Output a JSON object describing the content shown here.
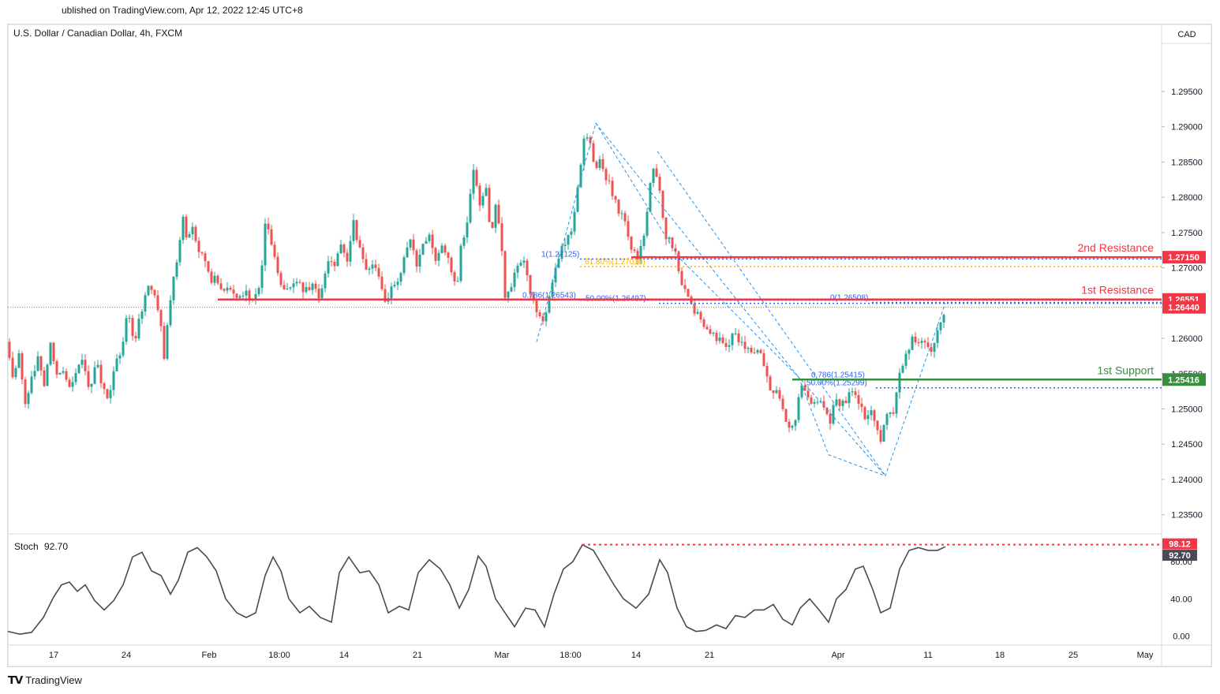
{
  "header": {
    "published": "ublished on TradingView.com, Apr 12, 2022 12:45 UTC+8"
  },
  "footer": {
    "brand": "TradingView"
  },
  "chart_data": {
    "type": "candlestick",
    "title": "U.S. Dollar / Canadian Dollar, 4h, FXCM",
    "currency_label": "CAD",
    "y_ticks": [
      "1.29500",
      "1.29000",
      "1.28500",
      "1.28000",
      "1.27500",
      "1.27000",
      "1.26500",
      "1.26000",
      "1.25500",
      "1.25000",
      "1.24500",
      "1.24000",
      "1.23500"
    ],
    "ylim": [
      1.2325,
      1.3045
    ],
    "x_ticks": [
      "17",
      "24",
      "Feb",
      "18:00",
      "14",
      "21",
      "Mar",
      "18:00",
      "14",
      "21",
      "Apr",
      "11",
      "18",
      "25",
      "May"
    ],
    "series_path": [
      [
        0,
        1.2595
      ],
      [
        7,
        1.2535
      ],
      [
        14,
        1.2575
      ],
      [
        22,
        1.2505
      ],
      [
        30,
        1.254
      ],
      [
        38,
        1.2575
      ],
      [
        46,
        1.2535
      ],
      [
        54,
        1.2595
      ],
      [
        62,
        1.2545
      ],
      [
        70,
        1.2555
      ],
      [
        78,
        1.2535
      ],
      [
        88,
        1.2555
      ],
      [
        96,
        1.257
      ],
      [
        104,
        1.2525
      ],
      [
        112,
        1.2575
      ],
      [
        120,
        1.2525
      ],
      [
        128,
        1.2515
      ],
      [
        136,
        1.2565
      ],
      [
        144,
        1.2575
      ],
      [
        152,
        1.264
      ],
      [
        160,
        1.2595
      ],
      [
        168,
        1.2635
      ],
      [
        176,
        1.267
      ],
      [
        184,
        1.2665
      ],
      [
        192,
        1.263
      ],
      [
        198,
        1.2575
      ],
      [
        204,
        1.264
      ],
      [
        210,
        1.269
      ],
      [
        216,
        1.2715
      ],
      [
        222,
        1.2775
      ],
      [
        228,
        1.2735
      ],
      [
        234,
        1.276
      ],
      [
        240,
        1.2725
      ],
      [
        248,
        1.2715
      ],
      [
        256,
        1.268
      ],
      [
        264,
        1.269
      ],
      [
        272,
        1.2665
      ],
      [
        280,
        1.2675
      ],
      [
        290,
        1.2655
      ],
      [
        300,
        1.2665
      ],
      [
        310,
        1.2655
      ],
      [
        320,
        1.267
      ],
      [
        326,
        1.276
      ],
      [
        332,
        1.2745
      ],
      [
        340,
        1.2705
      ],
      [
        348,
        1.2665
      ],
      [
        356,
        1.2675
      ],
      [
        366,
        1.268
      ],
      [
        376,
        1.2665
      ],
      [
        386,
        1.268
      ],
      [
        396,
        1.2655
      ],
      [
        406,
        1.2715
      ],
      [
        414,
        1.2705
      ],
      [
        422,
        1.2735
      ],
      [
        430,
        1.2705
      ],
      [
        438,
        1.2765
      ],
      [
        446,
        1.2725
      ],
      [
        454,
        1.2695
      ],
      [
        462,
        1.2705
      ],
      [
        470,
        1.2685
      ],
      [
        478,
        1.2655
      ],
      [
        486,
        1.267
      ],
      [
        494,
        1.2675
      ],
      [
        502,
        1.2715
      ],
      [
        510,
        1.2735
      ],
      [
        518,
        1.2705
      ],
      [
        526,
        1.2735
      ],
      [
        534,
        1.2745
      ],
      [
        542,
        1.2715
      ],
      [
        552,
        1.2735
      ],
      [
        560,
        1.2705
      ],
      [
        568,
        1.2665
      ],
      [
        574,
        1.273
      ],
      [
        582,
        1.2765
      ],
      [
        590,
        1.2835
      ],
      [
        598,
        1.279
      ],
      [
        606,
        1.2815
      ],
      [
        612,
        1.2745
      ],
      [
        618,
        1.279
      ],
      [
        624,
        1.275
      ],
      [
        630,
        1.2655
      ],
      [
        638,
        1.2675
      ],
      [
        646,
        1.2705
      ],
      [
        654,
        1.2705
      ],
      [
        662,
        1.2665
      ],
      [
        670,
        1.264
      ],
      [
        676,
        1.262
      ],
      [
        682,
        1.264
      ],
      [
        688,
        1.267
      ],
      [
        696,
        1.2705
      ],
      [
        704,
        1.2735
      ],
      [
        712,
        1.2745
      ],
      [
        718,
        1.2775
      ],
      [
        724,
        1.2835
      ],
      [
        730,
        1.2885
      ],
      [
        738,
        1.2875
      ],
      [
        744,
        1.2835
      ],
      [
        750,
        1.2855
      ],
      [
        756,
        1.2825
      ],
      [
        764,
        1.2815
      ],
      [
        772,
        1.2785
      ],
      [
        780,
        1.2775
      ],
      [
        786,
        1.275
      ],
      [
        792,
        1.272
      ],
      [
        800,
        1.2715
      ],
      [
        808,
        1.2755
      ],
      [
        814,
        1.2825
      ],
      [
        820,
        1.285
      ],
      [
        826,
        1.2805
      ],
      [
        832,
        1.275
      ],
      [
        840,
        1.2735
      ],
      [
        846,
        1.272
      ],
      [
        852,
        1.2685
      ],
      [
        860,
        1.2665
      ],
      [
        866,
        1.265
      ],
      [
        872,
        1.2635
      ],
      [
        880,
        1.2625
      ],
      [
        890,
        1.2605
      ],
      [
        900,
        1.26
      ],
      [
        910,
        1.259
      ],
      [
        920,
        1.2605
      ],
      [
        930,
        1.2595
      ],
      [
        940,
        1.258
      ],
      [
        948,
        1.2585
      ],
      [
        956,
        1.2575
      ],
      [
        962,
        1.2545
      ],
      [
        968,
        1.252
      ],
      [
        976,
        1.253
      ],
      [
        982,
        1.2495
      ],
      [
        990,
        1.2475
      ],
      [
        998,
        1.2485
      ],
      [
        1004,
        1.254
      ],
      [
        1012,
        1.2525
      ],
      [
        1020,
        1.2505
      ],
      [
        1028,
        1.251
      ],
      [
        1036,
        1.2495
      ],
      [
        1042,
        1.2475
      ],
      [
        1048,
        1.252
      ],
      [
        1056,
        1.2505
      ],
      [
        1064,
        1.2515
      ],
      [
        1070,
        1.2525
      ],
      [
        1078,
        1.2505
      ],
      [
        1086,
        1.249
      ],
      [
        1094,
        1.2495
      ],
      [
        1100,
        1.2475
      ],
      [
        1106,
        1.245
      ],
      [
        1112,
        1.2485
      ],
      [
        1118,
        1.2495
      ],
      [
        1124,
        1.25
      ],
      [
        1130,
        1.2555
      ],
      [
        1138,
        1.2575
      ],
      [
        1146,
        1.26
      ],
      [
        1154,
        1.2595
      ],
      [
        1162,
        1.26
      ],
      [
        1170,
        1.2575
      ],
      [
        1176,
        1.2605
      ],
      [
        1182,
        1.2625
      ],
      [
        1188,
        1.2645
      ]
    ],
    "levels": [
      {
        "name": "2nd Resistance",
        "value": 1.2715,
        "price_label": "1.27150",
        "color": "#f23645"
      },
      {
        "name": "1st Resistance",
        "value": 1.26551,
        "price_label": "1.26551",
        "color": "#f23645"
      },
      {
        "name": "1st Support",
        "value": 1.25416,
        "price_label": "1.25416",
        "color": "#388e3c"
      }
    ],
    "current_price": {
      "value": 1.2644,
      "label": "1.26440",
      "color": "#f23645"
    },
    "fib_annotations": [
      {
        "text": "1(1.27125)",
        "value": 1.27125,
        "color": "#2962ff"
      },
      {
        "text": "61.80%(1.27018)",
        "value": 1.27018,
        "color": "#f5b400"
      },
      {
        "text": "0.786(1.26543)",
        "value": 1.26543,
        "color": "#2962ff"
      },
      {
        "text": "50.00%(1.26497)",
        "value": 1.26497,
        "color": "#2962ff"
      },
      {
        "text": "0(1.26508)",
        "value": 1.26508,
        "color": "#2962ff"
      },
      {
        "text": "0.786(1.25415)",
        "value": 1.25415,
        "color": "#2962ff"
      },
      {
        "text": "50.00%(1.25299)",
        "value": 1.25299,
        "color": "#2962ff"
      }
    ],
    "stoch": {
      "label": "Stoch",
      "value_label": "92.70",
      "level_label": "98.12",
      "y_ticks": [
        "80.00",
        "40.00",
        "0.00"
      ],
      "ylim": [
        -8,
        108
      ],
      "values": [
        [
          0,
          5
        ],
        [
          15,
          2
        ],
        [
          30,
          4
        ],
        [
          45,
          20
        ],
        [
          58,
          42
        ],
        [
          68,
          55
        ],
        [
          78,
          58
        ],
        [
          88,
          48
        ],
        [
          98,
          55
        ],
        [
          110,
          38
        ],
        [
          122,
          28
        ],
        [
          134,
          38
        ],
        [
          146,
          55
        ],
        [
          158,
          85
        ],
        [
          170,
          90
        ],
        [
          182,
          70
        ],
        [
          194,
          65
        ],
        [
          206,
          45
        ],
        [
          216,
          60
        ],
        [
          228,
          90
        ],
        [
          240,
          95
        ],
        [
          252,
          85
        ],
        [
          264,
          70
        ],
        [
          276,
          40
        ],
        [
          290,
          25
        ],
        [
          302,
          20
        ],
        [
          314,
          25
        ],
        [
          326,
          65
        ],
        [
          336,
          85
        ],
        [
          346,
          70
        ],
        [
          356,
          40
        ],
        [
          370,
          25
        ],
        [
          382,
          32
        ],
        [
          396,
          20
        ],
        [
          410,
          15
        ],
        [
          420,
          68
        ],
        [
          432,
          85
        ],
        [
          446,
          68
        ],
        [
          458,
          70
        ],
        [
          470,
          55
        ],
        [
          482,
          25
        ],
        [
          496,
          32
        ],
        [
          508,
          28
        ],
        [
          520,
          68
        ],
        [
          534,
          82
        ],
        [
          548,
          72
        ],
        [
          560,
          55
        ],
        [
          572,
          30
        ],
        [
          584,
          50
        ],
        [
          596,
          86
        ],
        [
          606,
          75
        ],
        [
          618,
          40
        ],
        [
          630,
          25
        ],
        [
          642,
          10
        ],
        [
          656,
          30
        ],
        [
          668,
          28
        ],
        [
          680,
          10
        ],
        [
          692,
          45
        ],
        [
          704,
          72
        ],
        [
          716,
          80
        ],
        [
          728,
          98
        ],
        [
          742,
          92
        ],
        [
          756,
          72
        ],
        [
          768,
          55
        ],
        [
          780,
          40
        ],
        [
          796,
          30
        ],
        [
          812,
          45
        ],
        [
          826,
          82
        ],
        [
          836,
          68
        ],
        [
          848,
          30
        ],
        [
          860,
          10
        ],
        [
          872,
          5
        ],
        [
          884,
          6
        ],
        [
          898,
          12
        ],
        [
          910,
          8
        ],
        [
          922,
          22
        ],
        [
          934,
          20
        ],
        [
          946,
          28
        ],
        [
          958,
          28
        ],
        [
          970,
          34
        ],
        [
          982,
          18
        ],
        [
          994,
          12
        ],
        [
          1004,
          30
        ],
        [
          1016,
          40
        ],
        [
          1028,
          28
        ],
        [
          1040,
          15
        ],
        [
          1050,
          40
        ],
        [
          1062,
          50
        ],
        [
          1074,
          72
        ],
        [
          1084,
          75
        ],
        [
          1096,
          50
        ],
        [
          1106,
          25
        ],
        [
          1118,
          30
        ],
        [
          1130,
          72
        ],
        [
          1142,
          92
        ],
        [
          1154,
          95
        ],
        [
          1166,
          92
        ],
        [
          1178,
          92
        ],
        [
          1188,
          96
        ]
      ]
    }
  }
}
